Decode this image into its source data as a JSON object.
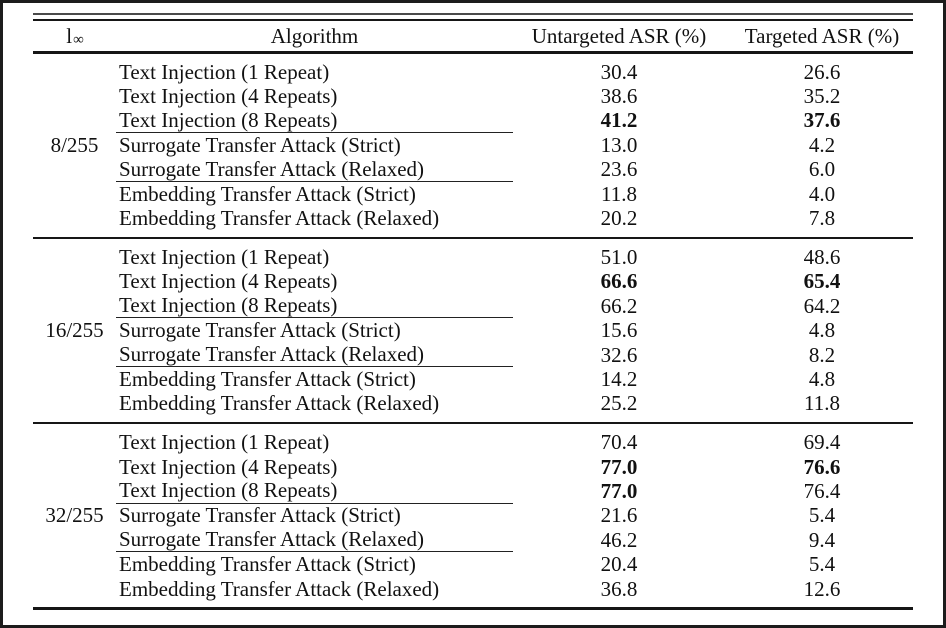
{
  "table": {
    "header": {
      "norm_base": "l",
      "norm_sub": "∞",
      "algorithm": "Algorithm",
      "untargeted": "Untargeted ASR (%)",
      "targeted": "Targeted ASR (%)"
    },
    "groups": [
      {
        "epsilon": "8/255",
        "rows": [
          {
            "algorithm": "Text Injection (1 Repeat)",
            "untargeted": "30.4",
            "targeted": "26.6"
          },
          {
            "algorithm": "Text Injection (4 Repeats)",
            "untargeted": "38.6",
            "targeted": "35.2"
          },
          {
            "algorithm": "Text Injection (8 Repeats)",
            "untargeted": "41.2",
            "targeted": "37.6",
            "untargeted_bold": true,
            "targeted_bold": true,
            "rule_after": true
          },
          {
            "algorithm": "Surrogate Transfer Attack (Strict)",
            "untargeted": "13.0",
            "targeted": "4.2"
          },
          {
            "algorithm": "Surrogate Transfer Attack (Relaxed)",
            "untargeted": "23.6",
            "targeted": "6.0",
            "rule_after": true
          },
          {
            "algorithm": "Embedding Transfer Attack (Strict)",
            "untargeted": "11.8",
            "targeted": "4.0"
          },
          {
            "algorithm": "Embedding Transfer Attack (Relaxed)",
            "untargeted": "20.2",
            "targeted": "7.8"
          }
        ]
      },
      {
        "epsilon": "16/255",
        "rows": [
          {
            "algorithm": "Text Injection (1 Repeat)",
            "untargeted": "51.0",
            "targeted": "48.6"
          },
          {
            "algorithm": "Text Injection (4 Repeats)",
            "untargeted": "66.6",
            "targeted": "65.4",
            "untargeted_bold": true,
            "targeted_bold": true
          },
          {
            "algorithm": "Text Injection (8 Repeats)",
            "untargeted": "66.2",
            "targeted": "64.2",
            "rule_after": true
          },
          {
            "algorithm": "Surrogate Transfer Attack (Strict)",
            "untargeted": "15.6",
            "targeted": "4.8"
          },
          {
            "algorithm": "Surrogate Transfer Attack (Relaxed)",
            "untargeted": "32.6",
            "targeted": "8.2",
            "rule_after": true
          },
          {
            "algorithm": "Embedding Transfer Attack (Strict)",
            "untargeted": "14.2",
            "targeted": "4.8"
          },
          {
            "algorithm": "Embedding Transfer Attack (Relaxed)",
            "untargeted": "25.2",
            "targeted": "11.8"
          }
        ]
      },
      {
        "epsilon": "32/255",
        "rows": [
          {
            "algorithm": "Text Injection (1 Repeat)",
            "untargeted": "70.4",
            "targeted": "69.4"
          },
          {
            "algorithm": "Text Injection (4 Repeats)",
            "untargeted": "77.0",
            "targeted": "76.6",
            "untargeted_bold": true,
            "targeted_bold": true
          },
          {
            "algorithm": "Text Injection (8 Repeats)",
            "untargeted": "77.0",
            "targeted": "76.4",
            "untargeted_bold": true,
            "rule_after": true
          },
          {
            "algorithm": "Surrogate Transfer Attack (Strict)",
            "untargeted": "21.6",
            "targeted": "5.4"
          },
          {
            "algorithm": "Surrogate Transfer Attack (Relaxed)",
            "untargeted": "46.2",
            "targeted": "9.4",
            "rule_after": true
          },
          {
            "algorithm": "Embedding Transfer Attack (Strict)",
            "untargeted": "20.4",
            "targeted": "5.4"
          },
          {
            "algorithm": "Embedding Transfer Attack (Relaxed)",
            "untargeted": "36.8",
            "targeted": "12.6"
          }
        ]
      }
    ]
  }
}
